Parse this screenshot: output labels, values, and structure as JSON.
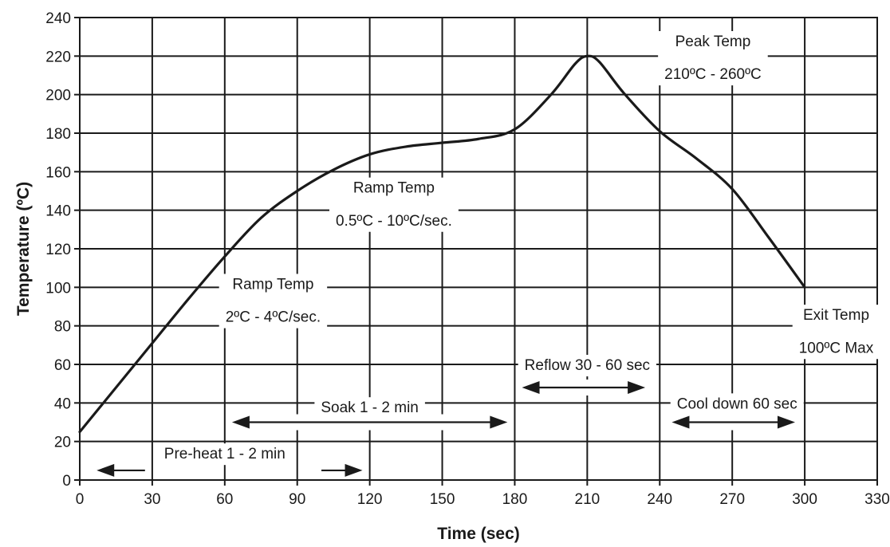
{
  "chart_data": {
    "type": "line",
    "title": "",
    "xlabel": "Time (sec)",
    "ylabel": "Temperature (ºC)",
    "xlim": [
      0,
      330
    ],
    "ylim": [
      0,
      240
    ],
    "x_ticks": [
      0,
      30,
      60,
      90,
      120,
      150,
      180,
      210,
      240,
      270,
      300,
      330
    ],
    "y_ticks": [
      0,
      20,
      40,
      60,
      80,
      100,
      120,
      140,
      160,
      180,
      200,
      220,
      240
    ],
    "grid": true,
    "legend": "none",
    "series": [
      {
        "x": [
          0,
          15,
          30,
          45,
          60,
          75,
          90,
          105,
          120,
          135,
          150,
          165,
          180,
          195,
          205,
          210,
          215,
          225,
          240,
          255,
          270,
          285,
          300
        ],
        "y": [
          25,
          48,
          71,
          94,
          116,
          136,
          150,
          161,
          169,
          173,
          175,
          177,
          182,
          200,
          216,
          220,
          217,
          201,
          181,
          167,
          151,
          126,
          100
        ]
      }
    ],
    "annotations": [
      {
        "id": "peak",
        "lines": [
          "Peak Temp",
          "210ºC - 260ºC"
        ],
        "x": 262,
        "y": [
          228,
          211
        ]
      },
      {
        "id": "ramp2",
        "lines": [
          "Ramp Temp",
          "0.5ºC - 10ºC/sec."
        ],
        "x": 130,
        "y": [
          152,
          135
        ]
      },
      {
        "id": "ramp1",
        "lines": [
          "Ramp Temp",
          "2ºC - 4ºC/sec."
        ],
        "x": 80,
        "y": [
          102,
          85
        ]
      },
      {
        "id": "exit",
        "lines": [
          "Exit Temp",
          "100ºC Max"
        ],
        "x": 313,
        "y": [
          86,
          69
        ]
      },
      {
        "id": "reflow",
        "lines": [
          "Reflow 30 - 60 sec"
        ],
        "x": 210,
        "y": [
          60
        ]
      },
      {
        "id": "soak",
        "lines": [
          "Soak 1 - 2 min"
        ],
        "x": 120,
        "y": [
          38
        ]
      },
      {
        "id": "cooldown",
        "lines": [
          "Cool down 60 sec"
        ],
        "x": 272,
        "y": [
          40
        ]
      },
      {
        "id": "preheat",
        "lines": [
          "Pre-heat 1 - 2 min"
        ],
        "x": 60,
        "y": [
          14
        ]
      }
    ],
    "arrows": [
      {
        "id": "reflow-arrow",
        "x1": 183,
        "x2": 234,
        "y": 48,
        "heads": "both"
      },
      {
        "id": "soak-arrow",
        "x1": 63,
        "x2": 177,
        "y": 30,
        "heads": "both"
      },
      {
        "id": "cooldown-arrow",
        "x1": 245,
        "x2": 296,
        "y": 30,
        "heads": "both"
      },
      {
        "id": "preheat-left-arrow",
        "x1": 7,
        "x2": 27,
        "y": 5,
        "heads": "start"
      },
      {
        "id": "preheat-right-arrow",
        "x1": 100,
        "x2": 117,
        "y": 5,
        "heads": "end"
      }
    ]
  }
}
